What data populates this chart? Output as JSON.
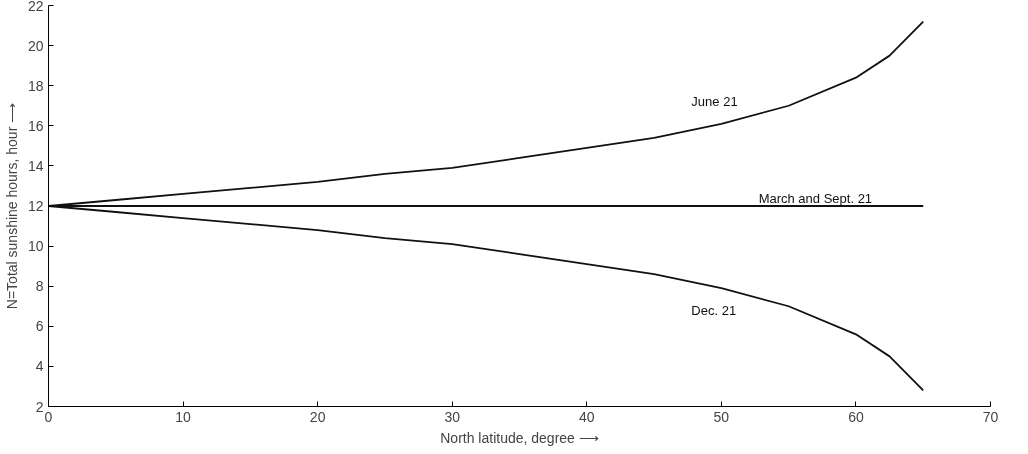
{
  "chart_data": {
    "type": "line",
    "xlabel": "North latitude, degree ⟶",
    "ylabel": "N=Total sunshine hours, hour ⟶",
    "x": [
      0,
      5,
      10,
      15,
      20,
      25,
      30,
      35,
      40,
      45,
      50,
      55,
      60,
      62.5,
      65
    ],
    "series": [
      {
        "name": "June 21",
        "color": "#111111",
        "values": [
          12,
          12.3,
          12.6,
          12.9,
          13.2,
          13.6,
          13.9,
          14.4,
          14.9,
          15.4,
          16.1,
          17.0,
          18.4,
          19.5,
          21.2
        ]
      },
      {
        "name": "March and Sept. 21",
        "color": "#111111",
        "values": [
          12,
          12,
          12,
          12,
          12,
          12,
          12,
          12,
          12,
          12,
          12,
          12,
          12,
          12,
          12
        ]
      },
      {
        "name": "Dec. 21",
        "color": "#111111",
        "values": [
          12,
          11.7,
          11.4,
          11.1,
          10.8,
          10.4,
          10.1,
          9.6,
          9.1,
          8.6,
          7.9,
          7.0,
          5.6,
          4.5,
          2.8
        ]
      }
    ],
    "xlim": [
      0,
      70
    ],
    "ylim": [
      2,
      22
    ],
    "xticks": [
      0,
      10,
      20,
      30,
      40,
      50,
      60,
      70
    ],
    "yticks": [
      2,
      4,
      6,
      8,
      10,
      12,
      14,
      16,
      18,
      20,
      22
    ],
    "grid": false,
    "marker": "none",
    "line_style": "solid"
  }
}
